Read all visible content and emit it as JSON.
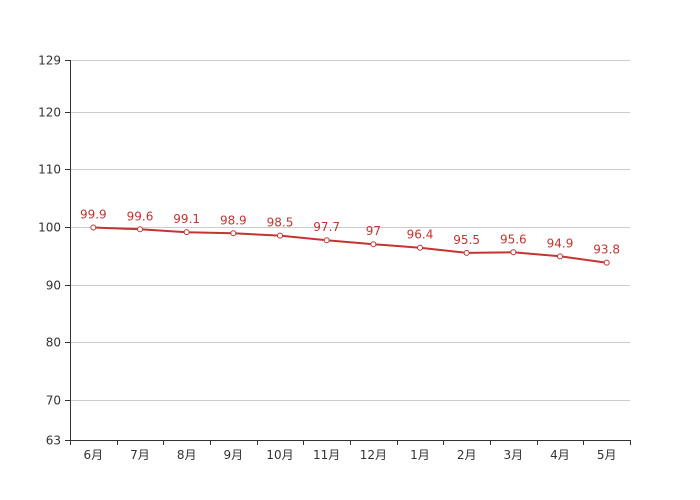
{
  "chart_data": {
    "type": "line",
    "title": "",
    "xlabel": "",
    "ylabel": "",
    "categories": [
      "6月",
      "7月",
      "8月",
      "9月",
      "10月",
      "11月",
      "12月",
      "1月",
      "2月",
      "3月",
      "4月",
      "5月"
    ],
    "series": [
      {
        "values": [
          99.9,
          99.6,
          99.1,
          98.9,
          98.5,
          97.7,
          97,
          96.4,
          95.5,
          95.6,
          94.9,
          93.8
        ],
        "color": "#c23531"
      }
    ],
    "ylim": [
      63,
      129
    ],
    "yticks": [
      63,
      70,
      80,
      90,
      100,
      110,
      120,
      129
    ],
    "grid": true,
    "legend": "none"
  }
}
